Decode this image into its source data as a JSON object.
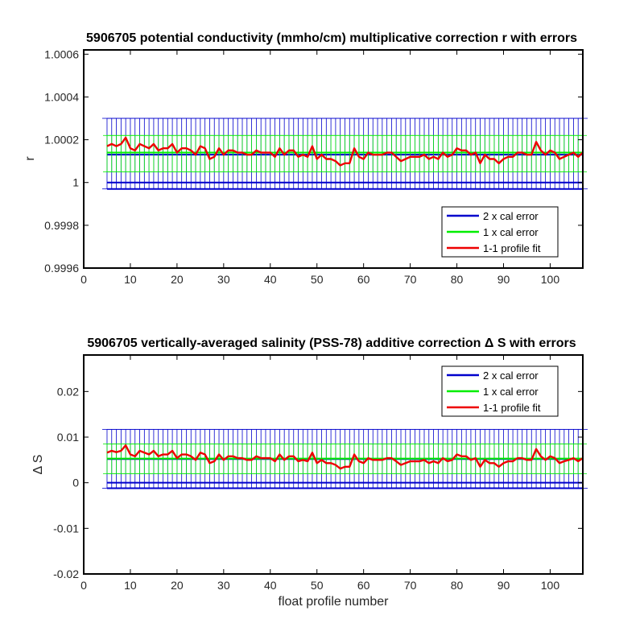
{
  "chart_data": [
    {
      "type": "line",
      "title": "5906705 potential conductivity (mmho/cm) multiplicative correction r with errors",
      "xlabel": "",
      "ylabel": "r",
      "xlim": [
        0,
        107
      ],
      "ylim": [
        0.9996,
        1.00062
      ],
      "xticks": [
        0,
        10,
        20,
        30,
        40,
        50,
        60,
        70,
        80,
        90,
        100
      ],
      "xtick_labels": [
        "0",
        "10",
        "20",
        "30",
        "40",
        "50",
        "60",
        "70",
        "80",
        "90",
        "100"
      ],
      "yticks": [
        0.9996,
        0.9998,
        1.0,
        1.0002,
        1.0004,
        1.0006
      ],
      "ytick_labels": [
        "0.9996",
        "0.9998",
        "1",
        "1.0002",
        "1.0004",
        "1.0006"
      ],
      "legend_position": "bottom-right",
      "grid": false,
      "x": [
        5,
        6,
        7,
        8,
        9,
        10,
        11,
        12,
        13,
        14,
        15,
        16,
        17,
        18,
        19,
        20,
        21,
        22,
        23,
        24,
        25,
        26,
        27,
        28,
        29,
        30,
        31,
        32,
        33,
        34,
        35,
        36,
        37,
        38,
        39,
        40,
        41,
        42,
        43,
        44,
        45,
        46,
        47,
        48,
        49,
        50,
        51,
        52,
        53,
        54,
        55,
        56,
        57,
        58,
        59,
        60,
        61,
        62,
        63,
        64,
        65,
        66,
        67,
        68,
        69,
        70,
        71,
        72,
        73,
        74,
        75,
        76,
        77,
        78,
        79,
        80,
        81,
        82,
        83,
        84,
        85,
        86,
        87,
        88,
        89,
        90,
        91,
        92,
        93,
        94,
        95,
        96,
        97,
        98,
        99,
        100,
        101,
        102,
        103,
        104,
        105,
        106,
        107
      ],
      "series": [
        {
          "name": "2 x cal error",
          "kind": "errorbar",
          "color": "#0000cc",
          "center": 1.00013,
          "upper": 1.0003,
          "lower": 0.99997,
          "line_values": [
            1.0,
            0.99997
          ]
        },
        {
          "name": "1 x cal error",
          "kind": "errorbar",
          "color": "#00ee00",
          "center": 1.00014,
          "upper": 1.00022,
          "lower": 1.00005
        },
        {
          "name": "1-1 profile fit",
          "kind": "line",
          "color": "#ee0000",
          "values": [
            1.00017,
            1.00018,
            1.00017,
            1.00018,
            1.00021,
            1.00016,
            1.00015,
            1.00018,
            1.00017,
            1.00016,
            1.00018,
            1.00015,
            1.00016,
            1.00016,
            1.00018,
            1.00014,
            1.00016,
            1.00016,
            1.00015,
            1.00013,
            1.00017,
            1.00016,
            1.00011,
            1.00012,
            1.00016,
            1.00013,
            1.00015,
            1.00015,
            1.00014,
            1.00014,
            1.00013,
            1.00013,
            1.00015,
            1.00014,
            1.00014,
            1.00014,
            1.00012,
            1.00016,
            1.00013,
            1.00015,
            1.00015,
            1.00012,
            1.00013,
            1.00012,
            1.00017,
            1.00011,
            1.00013,
            1.00011,
            1.00011,
            1.0001,
            1.00008,
            1.00009,
            1.00009,
            1.00016,
            1.00012,
            1.00011,
            1.00014,
            1.00013,
            1.00013,
            1.00013,
            1.00014,
            1.00014,
            1.00012,
            1.0001,
            1.00011,
            1.00012,
            1.00012,
            1.00012,
            1.00013,
            1.00011,
            1.00012,
            1.00011,
            1.00014,
            1.00012,
            1.00013,
            1.00016,
            1.00015,
            1.00015,
            1.00013,
            1.00014,
            1.00009,
            1.00013,
            1.00011,
            1.00011,
            1.00009,
            1.00011,
            1.00012,
            1.00012,
            1.00014,
            1.00014,
            1.00013,
            1.00013,
            1.00019,
            1.00015,
            1.00013,
            1.00015,
            1.00014,
            1.00011,
            1.00012,
            1.00013,
            1.00014,
            1.00012,
            1.00014
          ]
        }
      ]
    },
    {
      "type": "line",
      "title": "5906705 vertically-averaged salinity (PSS-78) additive correction Δ S with errors",
      "xlabel": "float profile number",
      "ylabel": "Δ S",
      "xlim": [
        0,
        107
      ],
      "ylim": [
        -0.02,
        0.028
      ],
      "xticks": [
        0,
        10,
        20,
        30,
        40,
        50,
        60,
        70,
        80,
        90,
        100
      ],
      "xtick_labels": [
        "0",
        "10",
        "20",
        "30",
        "40",
        "50",
        "60",
        "70",
        "80",
        "90",
        "100"
      ],
      "yticks": [
        -0.02,
        -0.01,
        0,
        0.01,
        0.02
      ],
      "ytick_labels": [
        "-0.02",
        "-0.01",
        "0",
        "0.01",
        "0.02"
      ],
      "legend_position": "top-right",
      "grid": false,
      "x": [
        5,
        6,
        7,
        8,
        9,
        10,
        11,
        12,
        13,
        14,
        15,
        16,
        17,
        18,
        19,
        20,
        21,
        22,
        23,
        24,
        25,
        26,
        27,
        28,
        29,
        30,
        31,
        32,
        33,
        34,
        35,
        36,
        37,
        38,
        39,
        40,
        41,
        42,
        43,
        44,
        45,
        46,
        47,
        48,
        49,
        50,
        51,
        52,
        53,
        54,
        55,
        56,
        57,
        58,
        59,
        60,
        61,
        62,
        63,
        64,
        65,
        66,
        67,
        68,
        69,
        70,
        71,
        72,
        73,
        74,
        75,
        76,
        77,
        78,
        79,
        80,
        81,
        82,
        83,
        84,
        85,
        86,
        87,
        88,
        89,
        90,
        91,
        92,
        93,
        94,
        95,
        96,
        97,
        98,
        99,
        100,
        101,
        102,
        103,
        104,
        105,
        106,
        107
      ],
      "series": [
        {
          "name": "2 x cal error",
          "kind": "errorbar",
          "color": "#0000cc",
          "center": 0.0052,
          "upper": 0.0117,
          "lower": -0.0012,
          "line_values": [
            0.0,
            -0.0012
          ]
        },
        {
          "name": "1 x cal error",
          "kind": "errorbar",
          "color": "#00ee00",
          "center": 0.0053,
          "upper": 0.0085,
          "lower": 0.002
        },
        {
          "name": "1-1 profile fit",
          "kind": "line",
          "color": "#ee0000",
          "values": [
            0.0066,
            0.007,
            0.0067,
            0.007,
            0.0082,
            0.0062,
            0.0058,
            0.007,
            0.0066,
            0.0062,
            0.007,
            0.0058,
            0.0062,
            0.0062,
            0.007,
            0.0054,
            0.0062,
            0.0062,
            0.0058,
            0.005,
            0.0066,
            0.0062,
            0.0043,
            0.0047,
            0.0062,
            0.005,
            0.0058,
            0.0058,
            0.0054,
            0.0054,
            0.005,
            0.005,
            0.0058,
            0.0054,
            0.0054,
            0.0054,
            0.0047,
            0.0062,
            0.005,
            0.0058,
            0.0058,
            0.0047,
            0.005,
            0.0047,
            0.0066,
            0.0043,
            0.005,
            0.0043,
            0.0043,
            0.0039,
            0.0031,
            0.0035,
            0.0035,
            0.0062,
            0.0047,
            0.0043,
            0.0054,
            0.005,
            0.005,
            0.005,
            0.0054,
            0.0054,
            0.0047,
            0.0039,
            0.0043,
            0.0047,
            0.0047,
            0.0047,
            0.005,
            0.0043,
            0.0047,
            0.0043,
            0.0054,
            0.0047,
            0.005,
            0.0062,
            0.0058,
            0.0058,
            0.005,
            0.0054,
            0.0035,
            0.005,
            0.0043,
            0.0043,
            0.0035,
            0.0043,
            0.0047,
            0.0047,
            0.0054,
            0.0054,
            0.005,
            0.005,
            0.0074,
            0.0058,
            0.005,
            0.0058,
            0.0054,
            0.0043,
            0.0047,
            0.005,
            0.0054,
            0.0047,
            0.0054
          ]
        }
      ]
    }
  ]
}
